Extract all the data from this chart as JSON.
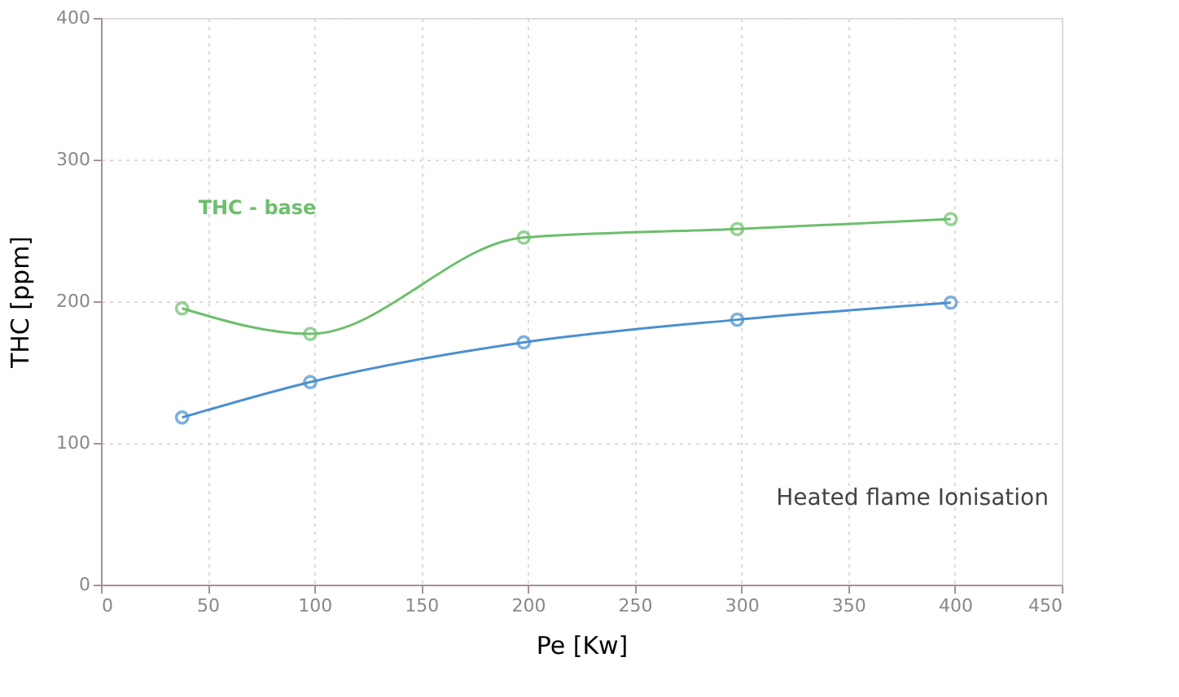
{
  "chart_data": {
    "type": "line",
    "xlabel": "Pe [Kw]",
    "ylabel": "THC [ppm]",
    "x": [
      38,
      98,
      198,
      298,
      398
    ],
    "series": [
      {
        "name": "THC - base",
        "color": "#6cbf6c",
        "values": [
          195,
          177,
          245,
          251,
          258
        ]
      },
      {
        "color": "#4a90d0",
        "values": [
          118,
          143,
          171,
          187,
          199
        ]
      }
    ],
    "xlim": [
      0,
      450
    ],
    "xticks": [
      0,
      50,
      100,
      150,
      200,
      250,
      300,
      350,
      400,
      450
    ],
    "ylim": [
      0,
      400
    ],
    "yticks": [
      0,
      100,
      200,
      300,
      400
    ],
    "grid": true,
    "marker": "circle",
    "line_style": "solid",
    "annotations": [
      "Heated flame Ionisation"
    ]
  }
}
